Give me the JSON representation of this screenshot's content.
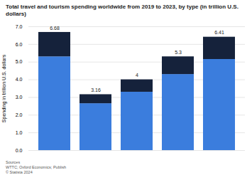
{
  "chart_data": {
    "type": "bar",
    "stacked": true,
    "title": "Total travel and tourism spending worldwide from 2019 to 2023, by type (in trillion U.S. dollars)",
    "categories": [
      null,
      null,
      null,
      null,
      null
    ],
    "series": [
      {
        "color": "#3b7ddd",
        "values": [
          5.3,
          2.65,
          3.3,
          4.3,
          5.15
        ]
      },
      {
        "color": "#15223b",
        "values": [
          1.38,
          0.51,
          0.7,
          1.0,
          1.26
        ]
      }
    ],
    "totals": [
      6.68,
      3.16,
      4,
      5.3,
      6.41
    ],
    "ylabel": "Spending in trillion U.S. dollars",
    "ylim": [
      0,
      7
    ],
    "yticks": [
      0,
      1,
      2,
      3,
      4,
      5,
      6,
      7
    ],
    "grid": true,
    "source": [
      "Sources",
      "WTTC; Oxford Economics; Publish",
      "© Statista 2024"
    ]
  }
}
